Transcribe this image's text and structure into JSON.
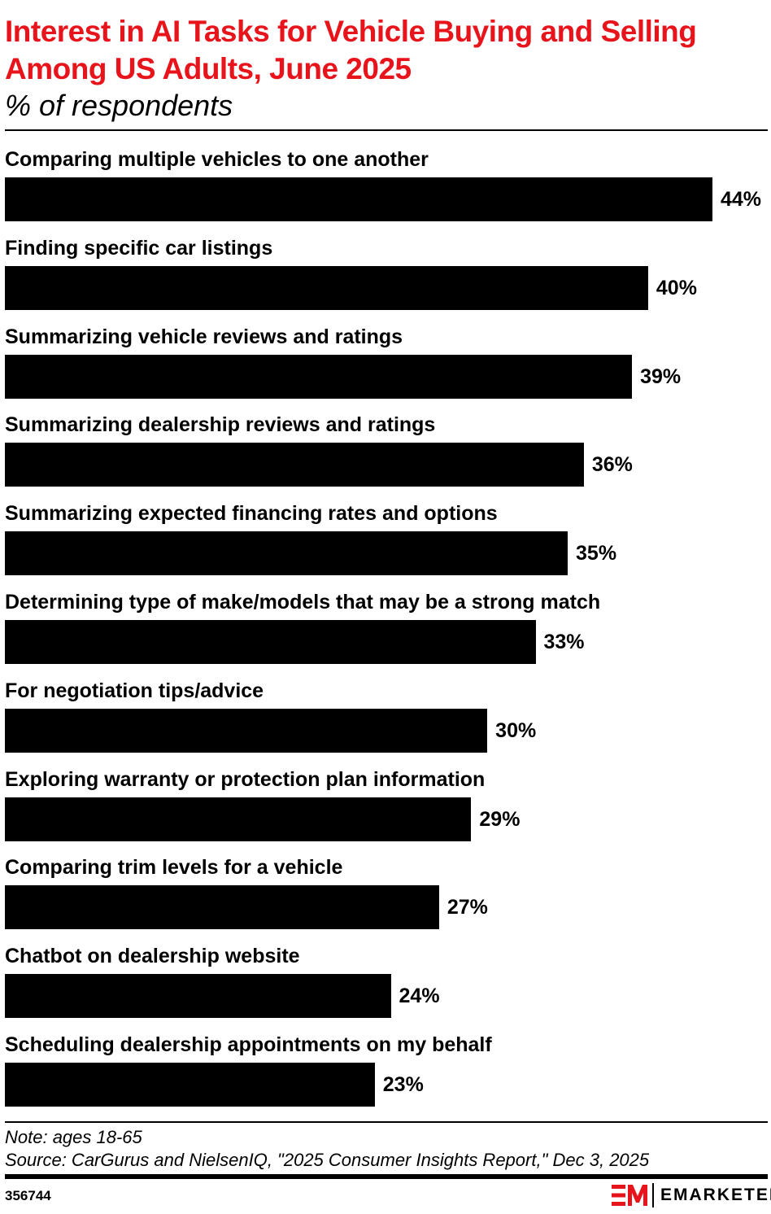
{
  "title": "Interest in AI Tasks for Vehicle Buying and Selling Among US Adults, June 2025",
  "subtitle": "% of respondents",
  "chart_data": {
    "type": "bar",
    "orientation": "horizontal",
    "title": "Interest in AI Tasks for Vehicle Buying and Selling Among US Adults, June 2025",
    "subtitle": "% of respondents",
    "categories": [
      "Comparing multiple vehicles to one another",
      "Finding specific car listings",
      "Summarizing vehicle reviews and ratings",
      "Summarizing dealership reviews and ratings",
      "Summarizing expected financing rates and options",
      "Determining type of make/models that may be a strong match",
      "For negotiation tips/advice",
      "Exploring warranty or protection plan information",
      "Comparing trim levels for a vehicle",
      "Chatbot on dealership website",
      "Scheduling dealership appointments on my behalf"
    ],
    "values": [
      44,
      40,
      39,
      36,
      35,
      33,
      30,
      29,
      27,
      24,
      23
    ],
    "value_labels": [
      "44%",
      "40%",
      "39%",
      "36%",
      "35%",
      "33%",
      "30%",
      "29%",
      "27%",
      "24%",
      "23%"
    ],
    "bar_color": "#000000",
    "grid": false
  },
  "footer": {
    "note": "Note: ages 18-65",
    "source": "Source: CarGurus and NielsenIQ, \"2025 Consumer Insights Report,\" Dec 3, 2025",
    "chart_id": "356744",
    "logo_text": "EMARKETER",
    "brand_color": "#e8141c"
  }
}
